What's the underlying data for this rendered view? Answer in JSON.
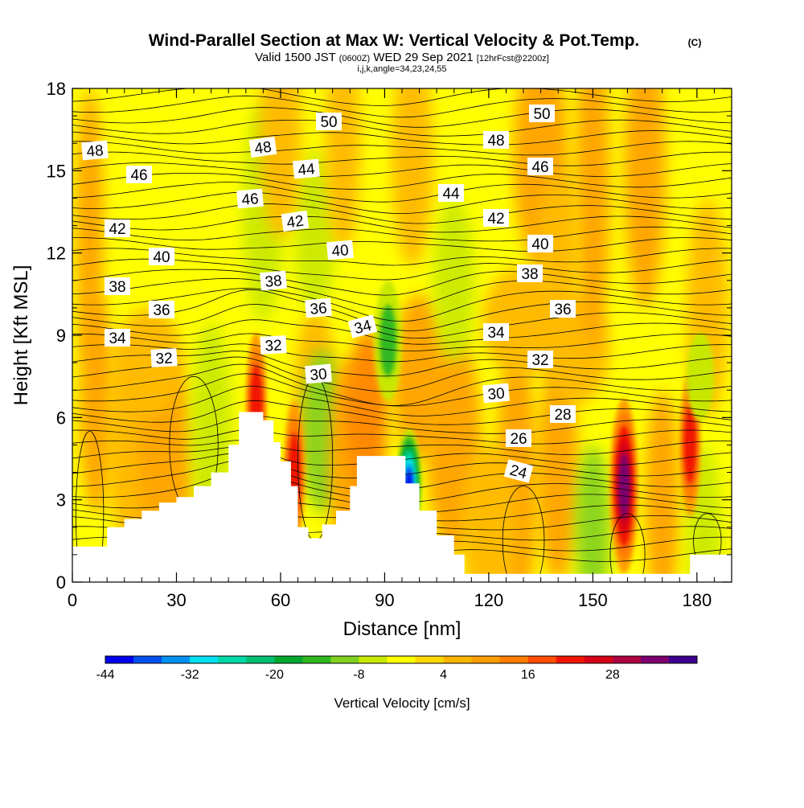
{
  "chart_data": {
    "type": "heatmap",
    "title": "Wind-Parallel Section at Max W: Vertical Velocity & Pot.Temp.",
    "title_badge": "(C)",
    "subtitle_parts": [
      "Valid 1500 JST ",
      "(0600Z)",
      " WED 29 Sep 2021 ",
      "[12hrFcst@2200z]"
    ],
    "subtitle2": "i,j,k,angle=34,23,24,55",
    "xlabel": "Distance [nm]",
    "ylabel": "Height [Kft MSL]",
    "xlim": [
      0,
      190
    ],
    "ylim": [
      0,
      18
    ],
    "xticks": [
      0,
      30,
      60,
      90,
      120,
      150,
      180
    ],
    "yticks": [
      0,
      3,
      6,
      9,
      12,
      15,
      18
    ],
    "colorbar": {
      "label": "Vertical Velocity [cm/s]",
      "tick_labels": [
        "-44",
        "-32",
        "-20",
        "-8",
        "4",
        "16",
        "28"
      ],
      "colors": [
        "#0000f0",
        "#0050f0",
        "#0090f0",
        "#00e0f0",
        "#00d8a8",
        "#00c070",
        "#00a830",
        "#30b820",
        "#80d020",
        "#c8e800",
        "#ffff00",
        "#ffd800",
        "#ffb400",
        "#ff9c00",
        "#ff7c00",
        "#ff4c00",
        "#f01400",
        "#d80018",
        "#b00040",
        "#7c0070",
        "#3c0090"
      ]
    },
    "terrain_height_kft": [
      [
        0,
        1.3
      ],
      [
        5,
        1.3
      ],
      [
        10,
        2.0
      ],
      [
        15,
        2.3
      ],
      [
        20,
        2.6
      ],
      [
        25,
        2.9
      ],
      [
        30,
        3.1
      ],
      [
        35,
        3.5
      ],
      [
        40,
        4.0
      ],
      [
        45,
        5.0
      ],
      [
        48,
        6.2
      ],
      [
        52,
        6.2
      ],
      [
        55,
        5.9
      ],
      [
        58,
        5.1
      ],
      [
        60,
        4.4
      ],
      [
        63,
        3.5
      ],
      [
        65,
        2.0
      ],
      [
        68,
        1.6
      ],
      [
        72,
        2.1
      ],
      [
        76,
        2.6
      ],
      [
        80,
        3.5
      ],
      [
        82,
        4.6
      ],
      [
        86,
        4.6
      ],
      [
        94,
        4.6
      ],
      [
        96,
        3.6
      ],
      [
        100,
        2.6
      ],
      [
        105,
        1.7
      ],
      [
        110,
        1.0
      ],
      [
        113,
        0.3
      ],
      [
        175,
        0.3
      ],
      [
        178,
        1.0
      ],
      [
        190,
        1.0
      ]
    ],
    "pot_temp_labels": [
      "48",
      "46",
      "42",
      "40",
      "38",
      "36",
      "34",
      "32",
      "48",
      "50",
      "44",
      "46",
      "42",
      "38",
      "40",
      "36",
      "32",
      "34",
      "30",
      "50",
      "48",
      "46",
      "44",
      "42",
      "40",
      "38",
      "36",
      "34",
      "32",
      "30",
      "28",
      "26",
      "24"
    ],
    "series": [
      {
        "name": "Vertical Velocity [cm/s]",
        "features": [
          {
            "x": 159,
            "y": 3.5,
            "value": 34
          },
          {
            "x": 178,
            "y": 5.0,
            "value": 22
          },
          {
            "x": 64,
            "y": 4.0,
            "value": 22
          },
          {
            "x": 53,
            "y": 6.5,
            "value": 22
          },
          {
            "x": 97,
            "y": 3.6,
            "value": -44
          },
          {
            "x": 91,
            "y": 8.8,
            "value": -14
          },
          {
            "x": 181,
            "y": 7.5,
            "value": -8
          }
        ]
      }
    ]
  }
}
